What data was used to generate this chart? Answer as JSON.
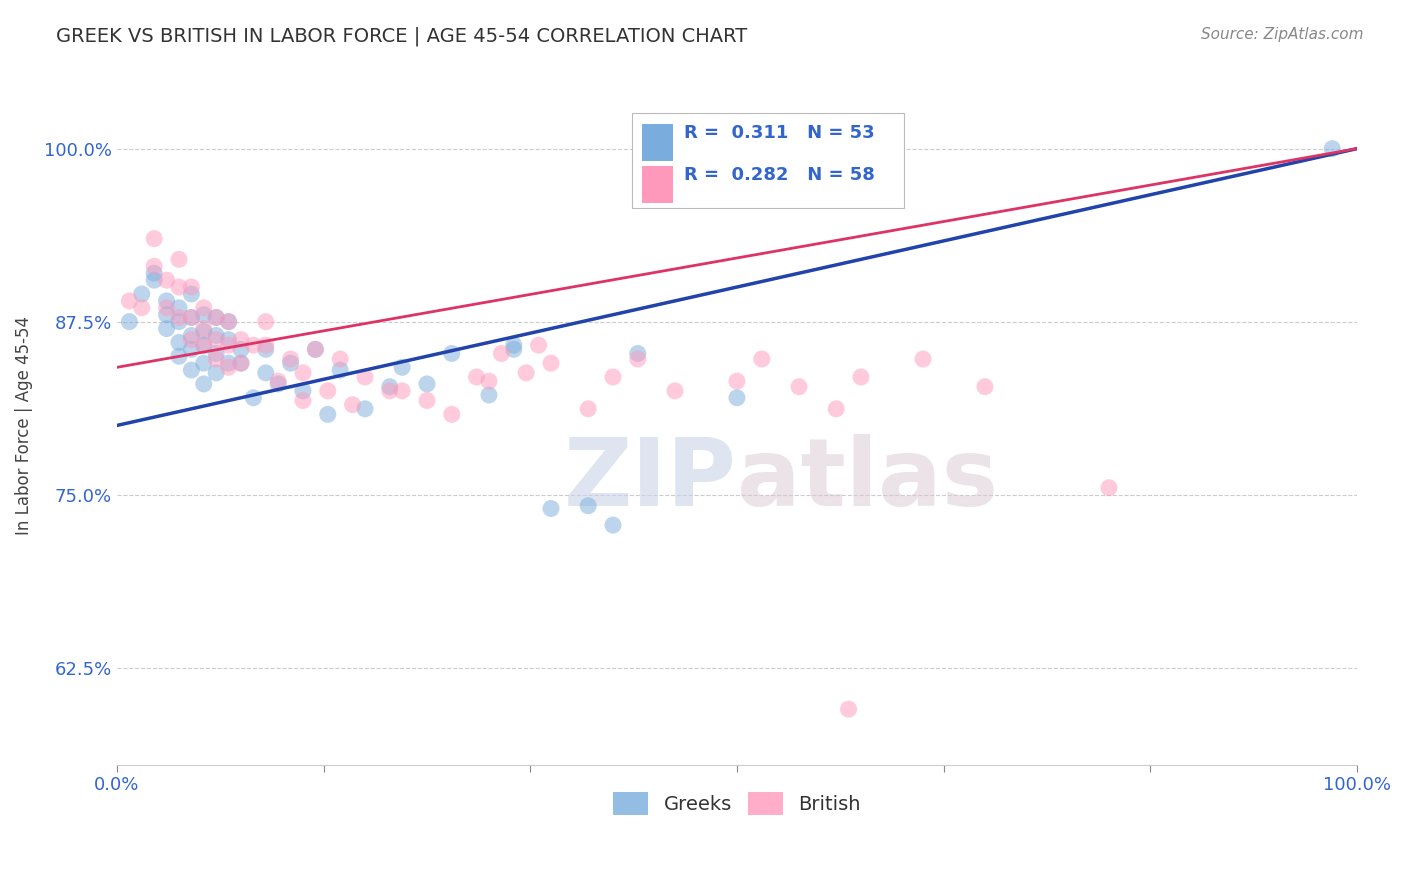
{
  "title": "GREEK VS BRITISH IN LABOR FORCE | AGE 45-54 CORRELATION CHART",
  "ylabel": "In Labor Force | Age 45-54",
  "source_text": "Source: ZipAtlas.com",
  "xlim": [
    0.0,
    1.0
  ],
  "ylim": [
    0.555,
    1.045
  ],
  "yticks": [
    0.625,
    0.75,
    0.875,
    1.0
  ],
  "ytick_labels": [
    "62.5%",
    "75.0%",
    "87.5%",
    "100.0%"
  ],
  "xticks": [
    0.0,
    0.1667,
    0.3333,
    0.5,
    0.6667,
    0.8333,
    1.0
  ],
  "xtick_labels": [
    "0.0%",
    "",
    "",
    "",
    "",
    "",
    "100.0%"
  ],
  "grid_color": "#cccccc",
  "background_color": "#ffffff",
  "tick_color": "#3366cc",
  "blue_R": 0.311,
  "blue_N": 53,
  "pink_R": 0.282,
  "pink_N": 58,
  "blue_color": "#7aaddd",
  "pink_color": "#ff99bb",
  "blue_line_color": "#2244aa",
  "pink_line_color": "#dd3366",
  "dot_alpha": 0.5,
  "dot_size": 150,
  "blue_x": [
    0.01,
    0.02,
    0.03,
    0.03,
    0.04,
    0.04,
    0.04,
    0.05,
    0.05,
    0.05,
    0.05,
    0.06,
    0.06,
    0.06,
    0.06,
    0.06,
    0.07,
    0.07,
    0.07,
    0.07,
    0.07,
    0.08,
    0.08,
    0.08,
    0.08,
    0.09,
    0.09,
    0.09,
    0.1,
    0.1,
    0.11,
    0.12,
    0.12,
    0.13,
    0.14,
    0.15,
    0.16,
    0.17,
    0.18,
    0.2,
    0.22,
    0.23,
    0.25,
    0.27,
    0.3,
    0.32,
    0.32,
    0.35,
    0.38,
    0.4,
    0.42,
    0.5,
    0.98
  ],
  "blue_y": [
    0.875,
    0.895,
    0.905,
    0.91,
    0.87,
    0.88,
    0.89,
    0.85,
    0.86,
    0.875,
    0.885,
    0.84,
    0.855,
    0.865,
    0.878,
    0.895,
    0.83,
    0.845,
    0.858,
    0.868,
    0.88,
    0.838,
    0.852,
    0.865,
    0.878,
    0.845,
    0.862,
    0.875,
    0.845,
    0.855,
    0.82,
    0.838,
    0.855,
    0.83,
    0.845,
    0.825,
    0.855,
    0.808,
    0.84,
    0.812,
    0.828,
    0.842,
    0.83,
    0.852,
    0.822,
    0.858,
    0.855,
    0.74,
    0.742,
    0.728,
    0.852,
    0.82,
    1.0
  ],
  "pink_x": [
    0.01,
    0.02,
    0.03,
    0.03,
    0.04,
    0.04,
    0.05,
    0.05,
    0.05,
    0.06,
    0.06,
    0.06,
    0.07,
    0.07,
    0.07,
    0.08,
    0.08,
    0.08,
    0.09,
    0.09,
    0.09,
    0.1,
    0.1,
    0.11,
    0.12,
    0.12,
    0.13,
    0.14,
    0.15,
    0.15,
    0.16,
    0.17,
    0.18,
    0.19,
    0.2,
    0.22,
    0.23,
    0.25,
    0.27,
    0.29,
    0.3,
    0.31,
    0.33,
    0.34,
    0.35,
    0.38,
    0.4,
    0.42,
    0.45,
    0.5,
    0.52,
    0.55,
    0.58,
    0.6,
    0.65,
    0.7,
    0.8,
    0.59
  ],
  "pink_y": [
    0.89,
    0.885,
    0.935,
    0.915,
    0.905,
    0.885,
    0.92,
    0.9,
    0.878,
    0.9,
    0.878,
    0.862,
    0.885,
    0.87,
    0.858,
    0.878,
    0.862,
    0.848,
    0.875,
    0.858,
    0.842,
    0.862,
    0.845,
    0.858,
    0.875,
    0.858,
    0.832,
    0.848,
    0.838,
    0.818,
    0.855,
    0.825,
    0.848,
    0.815,
    0.835,
    0.825,
    0.825,
    0.818,
    0.808,
    0.835,
    0.832,
    0.852,
    0.838,
    0.858,
    0.845,
    0.812,
    0.835,
    0.848,
    0.825,
    0.832,
    0.848,
    0.828,
    0.812,
    0.835,
    0.848,
    0.828,
    0.755,
    0.595
  ],
  "blue_line_x0": 0.0,
  "blue_line_y0": 0.8,
  "blue_line_x1": 1.0,
  "blue_line_y1": 1.0,
  "pink_line_x0": 0.0,
  "pink_line_y0": 0.842,
  "pink_line_x1": 1.0,
  "pink_line_y1": 1.0
}
